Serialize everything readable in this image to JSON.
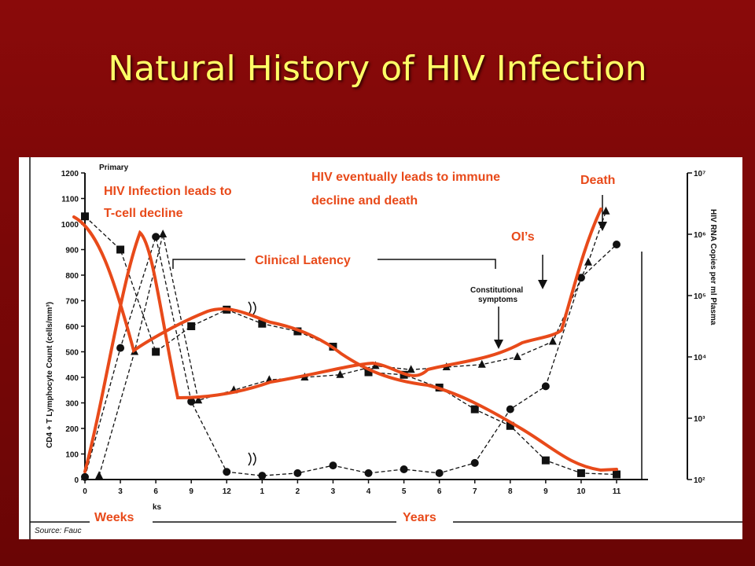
{
  "title": "Natural History of HIV Infection",
  "annotations": {
    "primary": "Primary",
    "hiv_infection": [
      "HIV Infection leads to",
      "T-cell decline"
    ],
    "immune_decline": [
      "HIV eventually leads to immune",
      "decline and death"
    ],
    "death": "Death",
    "ois": "OI’s",
    "clinical_latency": "Clinical Latency",
    "constitutional": [
      "Constitutional",
      "symptoms"
    ],
    "weeks": "Weeks",
    "years": "Years",
    "source": "Source: Fauc",
    "weeks_fragment": "ks"
  },
  "chart_data": {
    "type": "line",
    "ylabel": "CD4 + T Lymphocyte Count (cells/mm³)",
    "y2label": "HIV RNA Copies per ml Plasma",
    "ylim": [
      0,
      1200
    ],
    "y_ticks": [
      "0",
      "100",
      "200",
      "300",
      "400",
      "500",
      "600",
      "700",
      "800",
      "900",
      "1000",
      "1100",
      "1200"
    ],
    "y2_ticks": [
      "10²",
      "10³",
      "10⁴",
      "10⁵",
      "10⁶",
      "10⁷"
    ],
    "x_ticks": [
      "0",
      "3",
      "6",
      "9",
      "12",
      "1",
      "2",
      "3",
      "4",
      "5",
      "6",
      "7",
      "8",
      "9",
      "10",
      "11"
    ],
    "series": [
      {
        "name": "CD4 + T Lymphocyte Count",
        "marker": "square",
        "x": [
          0,
          1,
          2,
          3,
          4,
          5,
          6,
          7,
          8,
          9,
          10,
          11,
          12,
          13,
          14,
          15
        ],
        "values": [
          1030,
          900,
          500,
          600,
          665,
          610,
          580,
          520,
          420,
          410,
          360,
          275,
          210,
          75,
          25,
          20
        ]
      },
      {
        "name": "HIV RNA Copies per ml Plasma",
        "marker": "circle",
        "x": [
          0,
          1,
          2,
          3,
          4,
          5,
          6,
          7,
          8,
          9,
          10,
          11,
          12,
          13,
          14,
          15
        ],
        "values": [
          10,
          515,
          950,
          305,
          30,
          15,
          25,
          55,
          25,
          40,
          25,
          65,
          275,
          365,
          790,
          920
        ]
      },
      {
        "name": "HIV RNA (triangle)",
        "marker": "triangle",
        "x": [
          0.4,
          1.4,
          2.2,
          3.2,
          4.2,
          5.2,
          6.2,
          7.2,
          8.2,
          9.2,
          10.2,
          11.2,
          12.2,
          13.2,
          14.2,
          14.7
        ],
        "values": [
          15,
          500,
          960,
          310,
          350,
          390,
          400,
          410,
          445,
          430,
          440,
          450,
          480,
          540,
          850,
          1050
        ]
      }
    ]
  }
}
